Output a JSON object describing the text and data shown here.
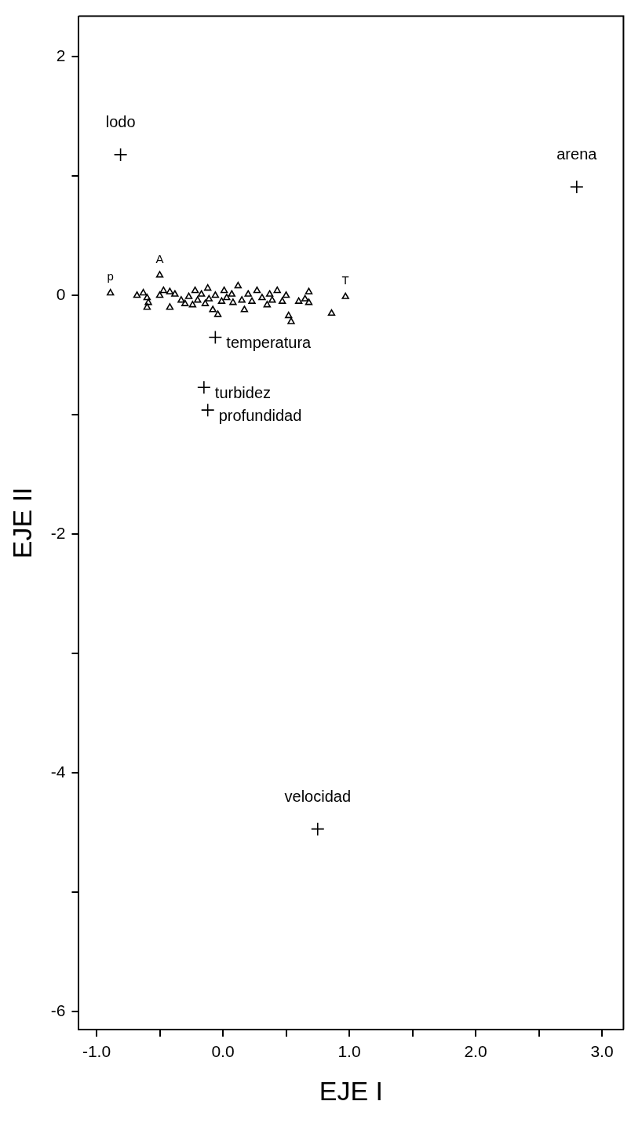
{
  "chart_data": {
    "type": "scatter",
    "xlabel": "EJE I",
    "ylabel": "EJE II",
    "xlim": [
      -1.14,
      3.17
    ],
    "ylim": [
      -6.15,
      2.34
    ],
    "xticks": [
      {
        "value": -1,
        "label": "-1.0"
      },
      {
        "value": -0.5,
        "label": null
      },
      {
        "value": 0,
        "label": "0.0"
      },
      {
        "value": 0.5,
        "label": null
      },
      {
        "value": 1,
        "label": "1.0"
      },
      {
        "value": 1.5,
        "label": null
      },
      {
        "value": 2,
        "label": "2.0"
      },
      {
        "value": 2.5,
        "label": null
      },
      {
        "value": 3,
        "label": "3.0"
      }
    ],
    "yticks": [
      2,
      {
        "value": 1,
        "label": null
      },
      0,
      {
        "value": -1,
        "label": null
      },
      -2,
      {
        "value": -3,
        "label": null
      },
      -4,
      {
        "value": -5,
        "label": null
      },
      -6
    ],
    "grid": false,
    "legend": false,
    "series": [
      {
        "marker": "triangle",
        "color": "#000000",
        "x": [
          -0.89,
          -0.68,
          -0.63,
          -0.6,
          -0.59,
          -0.6,
          -0.5,
          -0.5,
          -0.47,
          -0.42,
          -0.42,
          -0.38,
          -0.33,
          -0.3,
          -0.27,
          -0.24,
          -0.22,
          -0.2,
          -0.17,
          -0.14,
          -0.12,
          -0.11,
          -0.08,
          -0.06,
          -0.04,
          -0.01,
          0.01,
          0.03,
          0.07,
          0.08,
          0.12,
          0.15,
          0.17,
          0.2,
          0.23,
          0.27,
          0.31,
          0.35,
          0.37,
          0.39,
          0.43,
          0.47,
          0.5,
          0.52,
          0.54,
          0.6,
          0.65,
          0.68,
          0.68,
          0.86,
          0.97
        ],
        "values": [
          0.02,
          0.0,
          0.02,
          -0.02,
          -0.06,
          -0.1,
          0.0,
          0.17,
          0.04,
          -0.1,
          0.03,
          0.01,
          -0.04,
          -0.07,
          -0.01,
          -0.08,
          0.04,
          -0.04,
          0.01,
          -0.07,
          0.06,
          -0.03,
          -0.12,
          0.0,
          -0.16,
          -0.05,
          0.04,
          -0.02,
          0.01,
          -0.06,
          0.08,
          -0.04,
          -0.12,
          0.01,
          -0.05,
          0.04,
          -0.02,
          -0.08,
          0.01,
          -0.04,
          0.04,
          -0.05,
          0.0,
          -0.17,
          -0.22,
          -0.05,
          -0.03,
          -0.06,
          0.03,
          -0.15,
          -0.01
        ]
      },
      {
        "marker": "cross",
        "color": "#000000",
        "x": [
          -0.81,
          2.8,
          -0.06,
          -0.15,
          -0.12,
          0.75
        ],
        "values": [
          1.18,
          0.91,
          -0.35,
          -0.77,
          -0.96,
          -4.47
        ]
      }
    ],
    "annotations": [
      {
        "text": "lodo",
        "x": -0.81,
        "y": 1.18
      },
      {
        "text": "arena",
        "x": 2.8,
        "y": 0.91
      },
      {
        "text": "temperatura",
        "x": -0.06,
        "y": -0.35
      },
      {
        "text": "turbidez",
        "x": -0.15,
        "y": -0.77
      },
      {
        "text": "profundidad",
        "x": -0.12,
        "y": -0.96
      },
      {
        "text": "velocidad",
        "x": 0.75,
        "y": -4.47
      },
      {
        "text": "p",
        "x": -0.89,
        "y": 0.02
      },
      {
        "text": "A",
        "x": -0.5,
        "y": 0.17
      },
      {
        "text": "T",
        "x": 0.97,
        "y": -0.01
      }
    ]
  }
}
